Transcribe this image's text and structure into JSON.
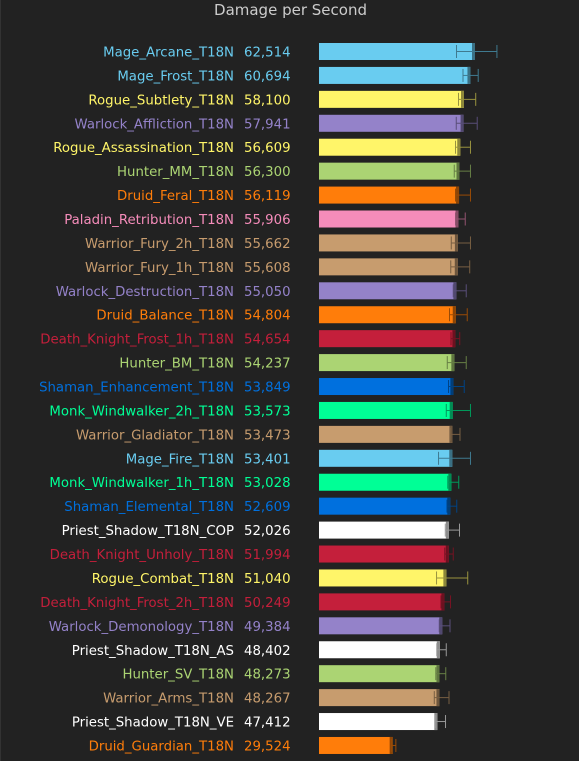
{
  "chart_data": {
    "type": "bar",
    "orientation": "horizontal",
    "title": "Damage per Second",
    "xlabel": "",
    "ylabel": "",
    "xlim": [
      0,
      73000
    ],
    "grid": false,
    "legend": "none",
    "bars": [
      {
        "name": "Mage_Arcane_T18N",
        "label": "62,514",
        "value": 62514,
        "err_low": 55100,
        "err_high": 71300,
        "color": "#69ccf0"
      },
      {
        "name": "Mage_Frost_T18N",
        "label": "60,694",
        "value": 60694,
        "err_low": 57700,
        "err_high": 63800,
        "color": "#69ccf0"
      },
      {
        "name": "Rogue_Subtlety_T18N",
        "label": "58,100",
        "value": 58100,
        "err_low": 55900,
        "err_high": 62800,
        "color": "#fff569"
      },
      {
        "name": "Warlock_Affliction_T18N",
        "label": "57,941",
        "value": 57941,
        "err_low": 55000,
        "err_high": 63400,
        "color": "#9482c9"
      },
      {
        "name": "Rogue_Assassination_T18N",
        "label": "56,609",
        "value": 56609,
        "err_low": 54700,
        "err_high": 60700,
        "color": "#fff569"
      },
      {
        "name": "Hunter_MM_T18N",
        "label": "56,300",
        "value": 56300,
        "err_low": 54200,
        "err_high": 60700,
        "color": "#abd473"
      },
      {
        "name": "Druid_Feral_T18N",
        "label": "56,119",
        "value": 56119,
        "err_low": 54700,
        "err_high": 60700,
        "color": "#ff7d0a"
      },
      {
        "name": "Paladin_Retribution_T18N",
        "label": "55,906",
        "value": 55906,
        "err_low": 54700,
        "err_high": 58600,
        "color": "#f58cba"
      },
      {
        "name": "Warrior_Fury_2h_T18N",
        "label": "55,662",
        "value": 55662,
        "err_low": 53000,
        "err_high": 60700,
        "color": "#c79c6e"
      },
      {
        "name": "Warrior_Fury_1h_T18N",
        "label": "55,608",
        "value": 55608,
        "err_low": 52800,
        "err_high": 60400,
        "color": "#c79c6e"
      },
      {
        "name": "Warlock_Destruction_T18N",
        "label": "55,050",
        "value": 55050,
        "err_low": 53800,
        "err_high": 59000,
        "color": "#9482c9"
      },
      {
        "name": "Druid_Balance_T18N",
        "label": "54,804",
        "value": 54804,
        "err_low": 52300,
        "err_high": 59400,
        "color": "#ff7d0a"
      },
      {
        "name": "Death_Knight_Frost_1h_T18N",
        "label": "54,654",
        "value": 54654,
        "err_low": 52900,
        "err_high": 56400,
        "color": "#c41f3b"
      },
      {
        "name": "Hunter_BM_T18N",
        "label": "54,237",
        "value": 54237,
        "err_low": 51400,
        "err_high": 59000,
        "color": "#abd473"
      },
      {
        "name": "Shaman_Enhancement_T18N",
        "label": "53,849",
        "value": 53849,
        "err_low": 51900,
        "err_high": 58200,
        "color": "#0070de"
      },
      {
        "name": "Monk_Windwalker_2h_T18N",
        "label": "53,573",
        "value": 53573,
        "err_low": 51000,
        "err_high": 60700,
        "color": "#00ff96"
      },
      {
        "name": "Warrior_Gladiator_T18N",
        "label": "53,473",
        "value": 53473,
        "err_low": 52700,
        "err_high": 56500,
        "color": "#c79c6e"
      },
      {
        "name": "Mage_Fire_T18N",
        "label": "53,401",
        "value": 53401,
        "err_low": 47900,
        "err_high": 60700,
        "color": "#69ccf0"
      },
      {
        "name": "Monk_Windwalker_1h_T18N",
        "label": "53,028",
        "value": 53028,
        "err_low": 51600,
        "err_high": 56000,
        "color": "#00ff96"
      },
      {
        "name": "Shaman_Elemental_T18N",
        "label": "52,609",
        "value": 52609,
        "err_low": 51300,
        "err_high": 55200,
        "color": "#0070de"
      },
      {
        "name": "Priest_Shadow_T18N_COP",
        "label": "52,026",
        "value": 52026,
        "err_low": 50600,
        "err_high": 56300,
        "color": "#ffffff"
      },
      {
        "name": "Death_Knight_Unholy_T18N",
        "label": "51,994",
        "value": 51994,
        "err_low": 50400,
        "err_high": 53800,
        "color": "#c41f3b"
      },
      {
        "name": "Rogue_Combat_T18N",
        "label": "51,040",
        "value": 51040,
        "err_low": 47100,
        "err_high": 59600,
        "color": "#fff569"
      },
      {
        "name": "Death_Knight_Frost_2h_T18N",
        "label": "50,249",
        "value": 50249,
        "err_low": 48900,
        "err_high": 52700,
        "color": "#c41f3b"
      },
      {
        "name": "Warlock_Demonology_T18N",
        "label": "49,384",
        "value": 49384,
        "err_low": 48200,
        "err_high": 52500,
        "color": "#9482c9"
      },
      {
        "name": "Priest_Shadow_T18N_AS",
        "label": "48,402",
        "value": 48402,
        "err_low": 47200,
        "err_high": 51000,
        "color": "#ffffff"
      },
      {
        "name": "Hunter_SV_T18N",
        "label": "48,273",
        "value": 48273,
        "err_low": 46800,
        "err_high": 50800,
        "color": "#abd473"
      },
      {
        "name": "Warrior_Arms_T18N",
        "label": "48,267",
        "value": 48267,
        "err_low": 46200,
        "err_high": 52100,
        "color": "#c79c6e"
      },
      {
        "name": "Priest_Shadow_T18N_VE",
        "label": "47,412",
        "value": 47412,
        "err_low": 46600,
        "err_high": 50700,
        "color": "#ffffff"
      },
      {
        "name": "Druid_Guardian_T18N",
        "label": "29,524",
        "value": 29524,
        "err_low": 29000,
        "err_high": 30800,
        "color": "#ff7d0a"
      }
    ]
  }
}
